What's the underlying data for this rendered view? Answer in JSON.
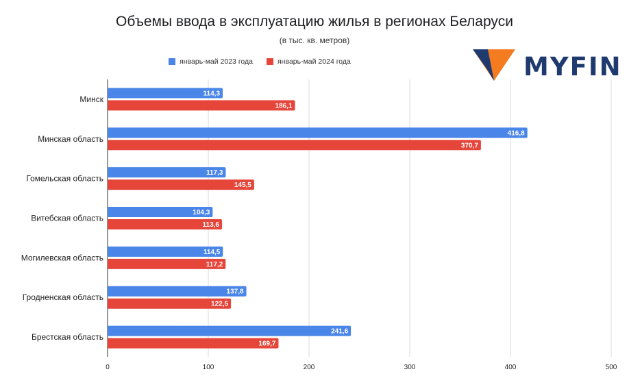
{
  "chart_data": {
    "type": "bar",
    "orientation": "horizontal",
    "title": "Объемы ввода в эксплуатацию жилья в регионах Беларуси",
    "subtitle": "(в тыс. кв. метров)",
    "categories": [
      "Минск",
      "Минская область",
      "Гомельская область",
      "Витебская область",
      "Могилевская область",
      "Гродненская область",
      "Брестская область"
    ],
    "series": [
      {
        "name": "январь-май 2023 года",
        "color": "#4a86e8",
        "values": [
          114.3,
          416.8,
          117.3,
          104.3,
          114.5,
          137.8,
          241.6
        ],
        "labels": [
          "114,3",
          "416,8",
          "117,3",
          "104,3",
          "114,5",
          "137,8",
          "241,6"
        ]
      },
      {
        "name": "январь-май 2024 года",
        "color": "#e6453a",
        "values": [
          186.1,
          370.7,
          145.5,
          113.6,
          117.2,
          122.5,
          169.7
        ],
        "labels": [
          "186,1",
          "370,7",
          "145,5",
          "113,6",
          "117,2",
          "122,5",
          "169,7"
        ]
      }
    ],
    "xlim": [
      0,
      500
    ],
    "ticks": [
      "0",
      "100",
      "200",
      "300",
      "400",
      "500"
    ],
    "grid": true,
    "legend_position": "top"
  },
  "logo": {
    "text": "MYFIN",
    "mark_colors": [
      "#f47b20",
      "#1f3a6e"
    ]
  }
}
